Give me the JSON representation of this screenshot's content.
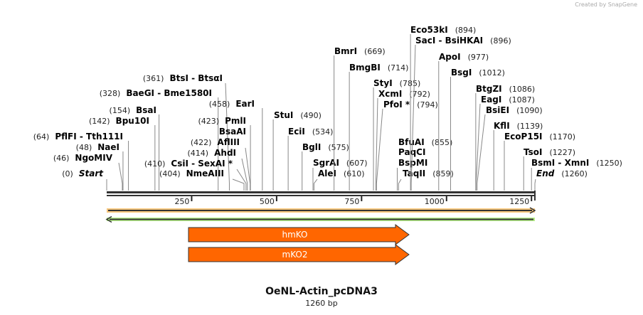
{
  "credit": "Created by SnapGene",
  "map": {
    "name": "OeNL-Actin_pcDNA3",
    "length_label": "1260 bp",
    "length": 1260
  },
  "ticks": [
    "250",
    "500",
    "750",
    "1000",
    "1250"
  ],
  "features": [
    {
      "name": "hmKO",
      "start": 245,
      "end": 894,
      "color": "#ff6600",
      "direction": "forward"
    },
    {
      "name": "mKO2",
      "start": 245,
      "end": 894,
      "color": "#ff6600",
      "direction": "forward"
    }
  ],
  "tracks": [
    {
      "color": "#f7c67c",
      "direction": "forward"
    },
    {
      "color": "#b7f08a",
      "direction": "reverse"
    }
  ],
  "sites": [
    {
      "name": "Start",
      "pos": "(0)",
      "site": 0
    },
    {
      "name": "NgoMIV",
      "pos": "(46)",
      "site": 46
    },
    {
      "name": "NaeI",
      "pos": "(48)",
      "site": 48
    },
    {
      "name": "PflFI  - Tth111I",
      "pos": "(64)",
      "site": 64
    },
    {
      "name": "Bpu10I",
      "pos": "(142)",
      "site": 142
    },
    {
      "name": "BsaI",
      "pos": "(154)",
      "site": 154
    },
    {
      "name": "BaeGI  - Bme1580I",
      "pos": "(328)",
      "site": 328
    },
    {
      "name": "BtsI  - BtsαI",
      "pos": "(361)",
      "site": 361
    },
    {
      "name": "EarI",
      "pos": "(458)",
      "site": 458
    },
    {
      "name": "PmlI",
      "pos": "(423)",
      "site": 423
    },
    {
      "name": "BsaAI",
      "pos": "",
      "site": 423
    },
    {
      "name": "AflIII",
      "pos": "(422)",
      "site": 422
    },
    {
      "name": "AhdI",
      "pos": "(414)",
      "site": 414
    },
    {
      "name": "CsiI  - SexAI *",
      "pos": "(410)",
      "site": 410
    },
    {
      "name": "NmeAIII",
      "pos": "(404)",
      "site": 404
    },
    {
      "name": "StuI",
      "pos": "(490)",
      "site": 490
    },
    {
      "name": "EciI",
      "pos": "(534)",
      "site": 534
    },
    {
      "name": "BglI",
      "pos": "(575)",
      "site": 575
    },
    {
      "name": "SgrAI",
      "pos": "(607)",
      "site": 607
    },
    {
      "name": "AleI",
      "pos": "(610)",
      "site": 610
    },
    {
      "name": "BmrI",
      "pos": "(669)",
      "site": 669
    },
    {
      "name": "BmgBI",
      "pos": "(714)",
      "site": 714
    },
    {
      "name": "StyI",
      "pos": "(785)",
      "site": 785
    },
    {
      "name": "XcmI",
      "pos": "(792)",
      "site": 792
    },
    {
      "name": "PfoI *",
      "pos": "(794)",
      "site": 794
    },
    {
      "name": "BfuAI",
      "pos": "(855)",
      "site": 855
    },
    {
      "name": "PaqCI",
      "pos": "",
      "site": 855
    },
    {
      "name": "BspMI",
      "pos": "",
      "site": 855
    },
    {
      "name": "TaqII",
      "pos": "(859)",
      "site": 859
    },
    {
      "name": "Eco53kI",
      "pos": "(894)",
      "site": 894
    },
    {
      "name": "SacI  - BsiHKAI",
      "pos": "(896)",
      "site": 896
    },
    {
      "name": "ApoI",
      "pos": "(977)",
      "site": 977
    },
    {
      "name": "BsgI",
      "pos": "(1012)",
      "site": 1012
    },
    {
      "name": "BtgZI",
      "pos": "(1086)",
      "site": 1086
    },
    {
      "name": "EagI",
      "pos": "(1087)",
      "site": 1087
    },
    {
      "name": "BsiEI",
      "pos": "(1090)",
      "site": 1090
    },
    {
      "name": "KflI",
      "pos": "(1139)",
      "site": 1139
    },
    {
      "name": "EcoP15I",
      "pos": "(1170)",
      "site": 1170
    },
    {
      "name": "TsoI",
      "pos": "(1227)",
      "site": 1227
    },
    {
      "name": "BsmI  - XmnI",
      "pos": "(1250)",
      "site": 1250
    },
    {
      "name": "End",
      "pos": "(1260)",
      "site": 1260
    }
  ]
}
